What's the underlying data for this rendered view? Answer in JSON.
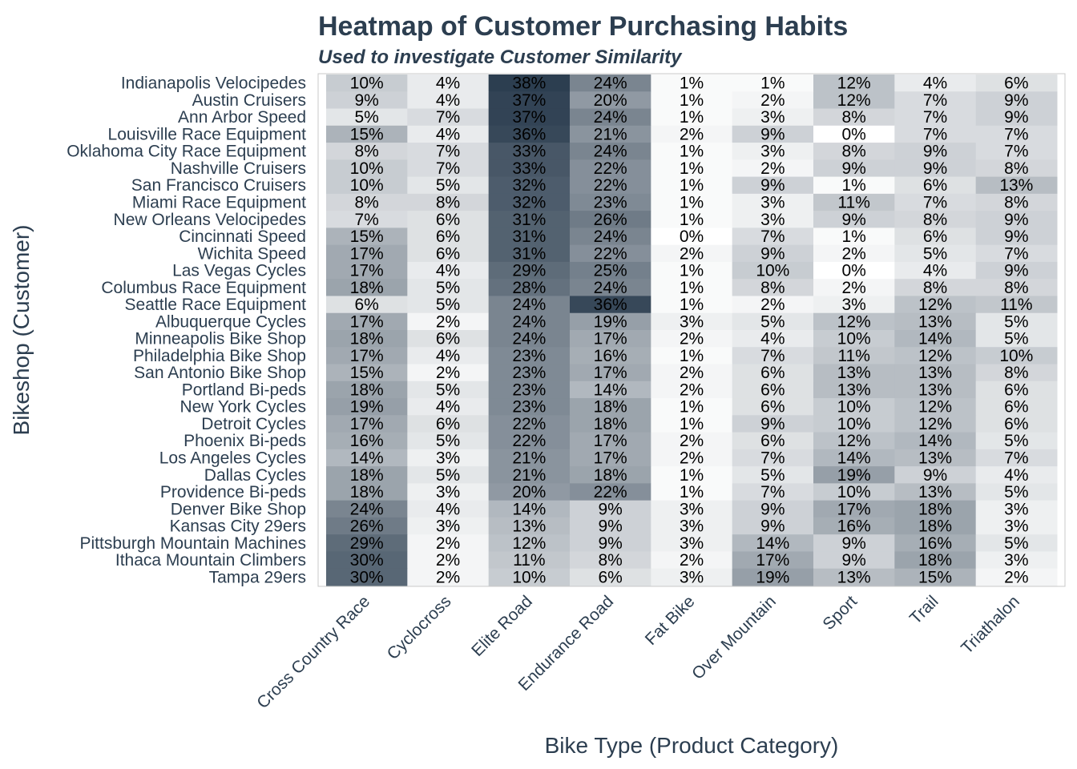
{
  "chart_data": {
    "type": "heatmap",
    "title": "Heatmap of Customer Purchasing Habits",
    "subtitle": "Used to investigate Customer Similarity",
    "xlabel": "Bike Type (Product Category)",
    "ylabel": "Bikeshop (Customer)",
    "color_low": "#ffffff",
    "color_high": "#2c3e50",
    "columns": [
      "Cross Country Race",
      "Cyclocross",
      "Elite Road",
      "Endurance Road",
      "Fat Bike",
      "Over Mountain",
      "Sport",
      "Trail",
      "Triathalon"
    ],
    "rows": [
      {
        "name": "Indianapolis Velocipedes",
        "values": [
          10,
          4,
          38,
          24,
          1,
          1,
          12,
          4,
          6
        ]
      },
      {
        "name": "Austin Cruisers",
        "values": [
          9,
          4,
          37,
          20,
          1,
          2,
          12,
          7,
          9
        ]
      },
      {
        "name": "Ann Arbor Speed",
        "values": [
          5,
          7,
          37,
          24,
          1,
          3,
          8,
          7,
          9
        ]
      },
      {
        "name": "Louisville Race Equipment",
        "values": [
          15,
          4,
          36,
          21,
          2,
          9,
          0,
          7,
          7
        ]
      },
      {
        "name": "Oklahoma City Race Equipment",
        "values": [
          8,
          7,
          33,
          24,
          1,
          3,
          8,
          9,
          7
        ]
      },
      {
        "name": "Nashville Cruisers",
        "values": [
          10,
          7,
          33,
          22,
          1,
          2,
          9,
          9,
          8
        ]
      },
      {
        "name": "San Francisco Cruisers",
        "values": [
          10,
          5,
          32,
          22,
          1,
          9,
          1,
          6,
          13
        ]
      },
      {
        "name": "Miami Race Equipment",
        "values": [
          8,
          8,
          32,
          23,
          1,
          3,
          11,
          7,
          8
        ]
      },
      {
        "name": "New Orleans Velocipedes",
        "values": [
          7,
          6,
          31,
          26,
          1,
          3,
          9,
          8,
          9
        ]
      },
      {
        "name": "Cincinnati Speed",
        "values": [
          15,
          6,
          31,
          24,
          0,
          7,
          1,
          6,
          9
        ]
      },
      {
        "name": "Wichita Speed",
        "values": [
          17,
          6,
          31,
          22,
          2,
          9,
          2,
          5,
          7
        ]
      },
      {
        "name": "Las Vegas Cycles",
        "values": [
          17,
          4,
          29,
          25,
          1,
          10,
          0,
          4,
          9
        ]
      },
      {
        "name": "Columbus Race Equipment",
        "values": [
          18,
          5,
          28,
          24,
          1,
          8,
          2,
          8,
          8
        ]
      },
      {
        "name": "Seattle Race Equipment",
        "values": [
          6,
          5,
          24,
          36,
          1,
          2,
          3,
          12,
          11
        ]
      },
      {
        "name": "Albuquerque Cycles",
        "values": [
          17,
          2,
          24,
          19,
          3,
          5,
          12,
          13,
          5
        ]
      },
      {
        "name": "Minneapolis Bike Shop",
        "values": [
          18,
          6,
          24,
          17,
          2,
          4,
          10,
          14,
          5
        ]
      },
      {
        "name": "Philadelphia Bike Shop",
        "values": [
          17,
          4,
          23,
          16,
          1,
          7,
          11,
          12,
          10
        ]
      },
      {
        "name": "San Antonio Bike Shop",
        "values": [
          15,
          2,
          23,
          17,
          2,
          6,
          13,
          13,
          8
        ]
      },
      {
        "name": "Portland Bi-peds",
        "values": [
          18,
          5,
          23,
          14,
          2,
          6,
          13,
          13,
          6
        ]
      },
      {
        "name": "New York Cycles",
        "values": [
          19,
          4,
          23,
          18,
          1,
          6,
          10,
          12,
          6
        ]
      },
      {
        "name": "Detroit Cycles",
        "values": [
          17,
          6,
          22,
          18,
          1,
          9,
          10,
          12,
          6
        ]
      },
      {
        "name": "Phoenix Bi-peds",
        "values": [
          16,
          5,
          22,
          17,
          2,
          6,
          12,
          14,
          5
        ]
      },
      {
        "name": "Los Angeles Cycles",
        "values": [
          14,
          3,
          21,
          17,
          2,
          7,
          14,
          13,
          7
        ]
      },
      {
        "name": "Dallas Cycles",
        "values": [
          18,
          5,
          21,
          18,
          1,
          5,
          19,
          9,
          4
        ]
      },
      {
        "name": "Providence Bi-peds",
        "values": [
          18,
          3,
          20,
          22,
          1,
          7,
          10,
          13,
          5
        ]
      },
      {
        "name": "Denver Bike Shop",
        "values": [
          24,
          4,
          14,
          9,
          3,
          9,
          17,
          18,
          3
        ]
      },
      {
        "name": "Kansas City 29ers",
        "values": [
          26,
          3,
          13,
          9,
          3,
          9,
          16,
          18,
          3
        ]
      },
      {
        "name": "Pittsburgh Mountain Machines",
        "values": [
          29,
          2,
          12,
          9,
          3,
          14,
          9,
          16,
          5
        ]
      },
      {
        "name": "Ithaca Mountain Climbers",
        "values": [
          30,
          2,
          11,
          8,
          2,
          17,
          9,
          18,
          3
        ]
      },
      {
        "name": "Tampa 29ers",
        "values": [
          30,
          2,
          10,
          6,
          3,
          19,
          13,
          15,
          2
        ]
      }
    ],
    "value_suffix": "%",
    "value_range": [
      0,
      38
    ]
  }
}
